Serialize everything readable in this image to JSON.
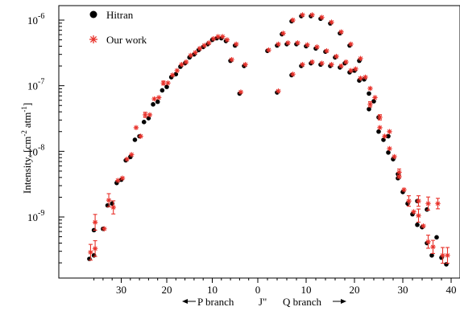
{
  "chart_data": {
    "type": "scatter",
    "xlabel": "J\"",
    "xlabel_left": "P branch",
    "xlabel_right": "Q branch",
    "ylabel_main": "Intensity, [cm",
    "ylabel_exp1": "-2",
    "ylabel_mid": "atm",
    "ylabel_exp2": "-1",
    "ylabel_end": "]",
    "y_scale": "log",
    "ylim": [
      1.8e-10,
      1.35e-06
    ],
    "xlim_note": "P branch plotted reversed (J\" 37 -> 1, left to right), Q branch plotted forward (J\" 1 -> 40)",
    "x_ticks": [
      {
        "value": "30",
        "branch": "P",
        "j": 30
      },
      {
        "value": "20",
        "branch": "P",
        "j": 20
      },
      {
        "value": "10",
        "branch": "P",
        "j": 10
      },
      {
        "value": "0",
        "branch": "Q",
        "j": 0
      },
      {
        "value": "10",
        "branch": "Q",
        "j": 10
      },
      {
        "value": "20",
        "branch": "Q",
        "j": 20
      },
      {
        "value": "30",
        "branch": "Q",
        "j": 30
      },
      {
        "value": "40",
        "branch": "Q",
        "j": 40
      }
    ],
    "y_ticks": [
      {
        "base": "10",
        "exp": "-9",
        "value": 1e-09
      },
      {
        "base": "10",
        "exp": "-8",
        "value": 1e-08
      },
      {
        "base": "10",
        "exp": "-7",
        "value": 1e-07
      },
      {
        "base": "10",
        "exp": "-6",
        "value": 1e-06
      }
    ],
    "legend": {
      "position": "top-left",
      "entries": [
        {
          "name": "Hitran",
          "marker": "circle",
          "color": "#000000"
        },
        {
          "name": "Our work",
          "marker": "asterisk",
          "color": "#e8322b"
        }
      ]
    },
    "series": [
      {
        "name": "Hitran",
        "color": "#000000",
        "points": [
          {
            "branch": "P",
            "j": 37,
            "y": 2.3e-10
          },
          {
            "branch": "P",
            "j": 36,
            "y": 2.6e-10
          },
          {
            "branch": "P",
            "j": 36,
            "y": 6.3e-10
          },
          {
            "branch": "P",
            "j": 34,
            "y": 6.6e-10
          },
          {
            "branch": "P",
            "j": 33,
            "y": 1.5e-09
          },
          {
            "branch": "P",
            "j": 32,
            "y": 1.6e-09
          },
          {
            "branch": "P",
            "j": 31,
            "y": 3.3e-09
          },
          {
            "branch": "P",
            "j": 30,
            "y": 3.7e-09
          },
          {
            "branch": "P",
            "j": 29,
            "y": 7.3e-09
          },
          {
            "branch": "P",
            "j": 28,
            "y": 8.2e-09
          },
          {
            "branch": "P",
            "j": 27,
            "y": 1.5e-08
          },
          {
            "branch": "P",
            "j": 26,
            "y": 1.7e-08
          },
          {
            "branch": "P",
            "j": 25,
            "y": 2.8e-08
          },
          {
            "branch": "P",
            "j": 24,
            "y": 3.2e-08
          },
          {
            "branch": "P",
            "j": 23,
            "y": 5.2e-08
          },
          {
            "branch": "P",
            "j": 22,
            "y": 5.7e-08
          },
          {
            "branch": "P",
            "j": 21,
            "y": 8.5e-08
          },
          {
            "branch": "P",
            "j": 20,
            "y": 9.6e-08
          },
          {
            "branch": "P",
            "j": 19,
            "y": 1.35e-07
          },
          {
            "branch": "P",
            "j": 18,
            "y": 1.5e-07
          },
          {
            "branch": "P",
            "j": 17,
            "y": 1.95e-07
          },
          {
            "branch": "P",
            "j": 16,
            "y": 2.2e-07
          },
          {
            "branch": "P",
            "j": 15,
            "y": 2.7e-07
          },
          {
            "branch": "P",
            "j": 14,
            "y": 3e-07
          },
          {
            "branch": "P",
            "j": 13,
            "y": 3.5e-07
          },
          {
            "branch": "P",
            "j": 12,
            "y": 3.9e-07
          },
          {
            "branch": "P",
            "j": 11,
            "y": 4.3e-07
          },
          {
            "branch": "P",
            "j": 10,
            "y": 5e-07
          },
          {
            "branch": "P",
            "j": 9,
            "y": 5.3e-07
          },
          {
            "branch": "P",
            "j": 8,
            "y": 5.3e-07
          },
          {
            "branch": "P",
            "j": 7,
            "y": 4.8e-07
          },
          {
            "branch": "P",
            "j": 6,
            "y": 2.4e-07
          },
          {
            "branch": "P",
            "j": 5,
            "y": 4.1e-07
          },
          {
            "branch": "P",
            "j": 4,
            "y": 7.6e-08
          },
          {
            "branch": "P",
            "j": 3,
            "y": 2e-07
          },
          {
            "branch": "Q",
            "j": 2,
            "y": 3.4e-07
          },
          {
            "branch": "Q",
            "j": 4,
            "y": 4.1e-07
          },
          {
            "branch": "Q",
            "j": 4,
            "y": 7.9e-08
          },
          {
            "branch": "Q",
            "j": 5,
            "y": 6.1e-07
          },
          {
            "branch": "Q",
            "j": 6,
            "y": 4.3e-07
          },
          {
            "branch": "Q",
            "j": 7,
            "y": 9.6e-07
          },
          {
            "branch": "Q",
            "j": 7,
            "y": 1.45e-07
          },
          {
            "branch": "Q",
            "j": 8,
            "y": 4.3e-07
          },
          {
            "branch": "Q",
            "j": 9,
            "y": 1.15e-06
          },
          {
            "branch": "Q",
            "j": 9,
            "y": 2e-07
          },
          {
            "branch": "Q",
            "j": 10,
            "y": 4e-07
          },
          {
            "branch": "Q",
            "j": 11,
            "y": 1.15e-06
          },
          {
            "branch": "Q",
            "j": 11,
            "y": 2.2e-07
          },
          {
            "branch": "Q",
            "j": 12,
            "y": 3.7e-07
          },
          {
            "branch": "Q",
            "j": 13,
            "y": 1.05e-06
          },
          {
            "branch": "Q",
            "j": 13,
            "y": 2.1e-07
          },
          {
            "branch": "Q",
            "j": 14,
            "y": 3.3e-07
          },
          {
            "branch": "Q",
            "j": 15,
            "y": 8.9e-07
          },
          {
            "branch": "Q",
            "j": 15,
            "y": 2e-07
          },
          {
            "branch": "Q",
            "j": 16,
            "y": 2.7e-07
          },
          {
            "branch": "Q",
            "j": 17,
            "y": 6.3e-07
          },
          {
            "branch": "Q",
            "j": 17,
            "y": 1.9e-07
          },
          {
            "branch": "Q",
            "j": 18,
            "y": 2.2e-07
          },
          {
            "branch": "Q",
            "j": 19,
            "y": 4.1e-07
          },
          {
            "branch": "Q",
            "j": 19,
            "y": 1.6e-07
          },
          {
            "branch": "Q",
            "j": 20,
            "y": 1.7e-07
          },
          {
            "branch": "Q",
            "j": 21,
            "y": 2.4e-07
          },
          {
            "branch": "Q",
            "j": 21,
            "y": 1.2e-07
          },
          {
            "branch": "Q",
            "j": 22,
            "y": 1.25e-07
          },
          {
            "branch": "Q",
            "j": 23,
            "y": 7.6e-08
          },
          {
            "branch": "Q",
            "j": 23,
            "y": 4.4e-08
          },
          {
            "branch": "Q",
            "j": 24,
            "y": 5.8e-08
          },
          {
            "branch": "Q",
            "j": 25,
            "y": 3.3e-08
          },
          {
            "branch": "Q",
            "j": 25,
            "y": 2e-08
          },
          {
            "branch": "Q",
            "j": 26,
            "y": 1.5e-08
          },
          {
            "branch": "Q",
            "j": 27,
            "y": 1.7e-08
          },
          {
            "branch": "Q",
            "j": 27,
            "y": 9.6e-09
          },
          {
            "branch": "Q",
            "j": 28,
            "y": 7.6e-09
          },
          {
            "branch": "Q",
            "j": 29,
            "y": 4.5e-09
          },
          {
            "branch": "Q",
            "j": 29,
            "y": 3.9e-09
          },
          {
            "branch": "Q",
            "j": 30,
            "y": 2.4e-09
          },
          {
            "branch": "Q",
            "j": 31,
            "y": 1.6e-09
          },
          {
            "branch": "Q",
            "j": 32,
            "y": 1.1e-09
          },
          {
            "branch": "Q",
            "j": 33,
            "y": 1.75e-09
          },
          {
            "branch": "Q",
            "j": 33,
            "y": 7.6e-10
          },
          {
            "branch": "Q",
            "j": 34,
            "y": 7e-10
          },
          {
            "branch": "Q",
            "j": 35,
            "y": 1.3e-09
          },
          {
            "branch": "Q",
            "j": 35,
            "y": 4e-10
          },
          {
            "branch": "Q",
            "j": 36,
            "y": 2.6e-10
          },
          {
            "branch": "Q",
            "j": 37,
            "y": 4.9e-10
          },
          {
            "branch": "Q",
            "j": 38,
            "y": 2.4e-10
          },
          {
            "branch": "Q",
            "j": 39,
            "y": 1.9e-10
          }
        ]
      },
      {
        "name": "Our work",
        "color": "#e8322b",
        "points": [
          {
            "branch": "P",
            "j": 37,
            "y": 2.9e-10,
            "err": 0.12
          },
          {
            "branch": "P",
            "j": 36,
            "y": 3.3e-10,
            "err": 0.12
          },
          {
            "branch": "P",
            "j": 36,
            "y": 8.3e-10,
            "err": 0.12
          },
          {
            "branch": "P",
            "j": 34,
            "y": 6.6e-10
          },
          {
            "branch": "P",
            "j": 33,
            "y": 1.8e-09,
            "err": 0.1
          },
          {
            "branch": "P",
            "j": 32,
            "y": 1.4e-09,
            "err": 0.1
          },
          {
            "branch": "P",
            "j": 31,
            "y": 3.6e-09
          },
          {
            "branch": "P",
            "j": 30,
            "y": 3.9e-09
          },
          {
            "branch": "P",
            "j": 29,
            "y": 7.6e-09
          },
          {
            "branch": "P",
            "j": 28,
            "y": 8.9e-09
          },
          {
            "branch": "P",
            "j": 27,
            "y": 2.3e-08
          },
          {
            "branch": "P",
            "j": 26,
            "y": 1.7e-08
          },
          {
            "branch": "P",
            "j": 25,
            "y": 3.6e-08,
            "err": 0.04
          },
          {
            "branch": "P",
            "j": 24,
            "y": 3.6e-08
          },
          {
            "branch": "P",
            "j": 23,
            "y": 6.3e-08
          },
          {
            "branch": "P",
            "j": 22,
            "y": 6.6e-08
          },
          {
            "branch": "P",
            "j": 21,
            "y": 1.1e-07,
            "err": 0.03
          },
          {
            "branch": "P",
            "j": 20,
            "y": 1.1e-07
          },
          {
            "branch": "P",
            "j": 19,
            "y": 1.45e-07
          },
          {
            "branch": "P",
            "j": 18,
            "y": 1.7e-07
          },
          {
            "branch": "P",
            "j": 17,
            "y": 2.1e-07
          },
          {
            "branch": "P",
            "j": 16,
            "y": 2.3e-07
          },
          {
            "branch": "P",
            "j": 15,
            "y": 2.9e-07
          },
          {
            "branch": "P",
            "j": 14,
            "y": 3.2e-07
          },
          {
            "branch": "P",
            "j": 13,
            "y": 3.7e-07
          },
          {
            "branch": "P",
            "j": 12,
            "y": 4.1e-07
          },
          {
            "branch": "P",
            "j": 11,
            "y": 4.5e-07
          },
          {
            "branch": "P",
            "j": 10,
            "y": 5.2e-07
          },
          {
            "branch": "P",
            "j": 9,
            "y": 5.6e-07
          },
          {
            "branch": "P",
            "j": 8,
            "y": 5.6e-07
          },
          {
            "branch": "P",
            "j": 7,
            "y": 5e-07
          },
          {
            "branch": "P",
            "j": 6,
            "y": 2.5e-07
          },
          {
            "branch": "P",
            "j": 5,
            "y": 4.3e-07
          },
          {
            "branch": "P",
            "j": 4,
            "y": 8e-08
          },
          {
            "branch": "P",
            "j": 3,
            "y": 2.1e-07
          },
          {
            "branch": "Q",
            "j": 2,
            "y": 3.5e-07
          },
          {
            "branch": "Q",
            "j": 4,
            "y": 4.3e-07
          },
          {
            "branch": "Q",
            "j": 4,
            "y": 8.3e-08
          },
          {
            "branch": "Q",
            "j": 5,
            "y": 6.3e-07
          },
          {
            "branch": "Q",
            "j": 6,
            "y": 4.5e-07
          },
          {
            "branch": "Q",
            "j": 7,
            "y": 1e-06
          },
          {
            "branch": "Q",
            "j": 7,
            "y": 1.5e-07
          },
          {
            "branch": "Q",
            "j": 8,
            "y": 4.5e-07
          },
          {
            "branch": "Q",
            "j": 9,
            "y": 1.2e-06
          },
          {
            "branch": "Q",
            "j": 9,
            "y": 2.1e-07
          },
          {
            "branch": "Q",
            "j": 10,
            "y": 4.2e-07
          },
          {
            "branch": "Q",
            "j": 11,
            "y": 1.2e-06
          },
          {
            "branch": "Q",
            "j": 11,
            "y": 2.3e-07
          },
          {
            "branch": "Q",
            "j": 12,
            "y": 3.9e-07
          },
          {
            "branch": "Q",
            "j": 13,
            "y": 1.1e-06
          },
          {
            "branch": "Q",
            "j": 13,
            "y": 2.2e-07
          },
          {
            "branch": "Q",
            "j": 14,
            "y": 3.4e-07
          },
          {
            "branch": "Q",
            "j": 15,
            "y": 9.3e-07
          },
          {
            "branch": "Q",
            "j": 15,
            "y": 2.1e-07
          },
          {
            "branch": "Q",
            "j": 16,
            "y": 2.8e-07
          },
          {
            "branch": "Q",
            "j": 17,
            "y": 6.6e-07
          },
          {
            "branch": "Q",
            "j": 17,
            "y": 2e-07
          },
          {
            "branch": "Q",
            "j": 18,
            "y": 2.3e-07
          },
          {
            "branch": "Q",
            "j": 19,
            "y": 4.3e-07
          },
          {
            "branch": "Q",
            "j": 19,
            "y": 1.7e-07
          },
          {
            "branch": "Q",
            "j": 20,
            "y": 1.8e-07
          },
          {
            "branch": "Q",
            "j": 21,
            "y": 2.6e-07
          },
          {
            "branch": "Q",
            "j": 21,
            "y": 1.3e-07
          },
          {
            "branch": "Q",
            "j": 22,
            "y": 1.35e-07
          },
          {
            "branch": "Q",
            "j": 23,
            "y": 9.1e-08
          },
          {
            "branch": "Q",
            "j": 23,
            "y": 5.2e-08,
            "err": 0.04
          },
          {
            "branch": "Q",
            "j": 24,
            "y": 6.6e-08
          },
          {
            "branch": "Q",
            "j": 25,
            "y": 3.3e-08,
            "err": 0.04
          },
          {
            "branch": "Q",
            "j": 25,
            "y": 2.3e-08
          },
          {
            "branch": "Q",
            "j": 26,
            "y": 1.7e-08
          },
          {
            "branch": "Q",
            "j": 27,
            "y": 2e-08
          },
          {
            "branch": "Q",
            "j": 27,
            "y": 1.1e-08
          },
          {
            "branch": "Q",
            "j": 28,
            "y": 8.3e-09
          },
          {
            "branch": "Q",
            "j": 29,
            "y": 4.8e-09,
            "err": 0.05
          },
          {
            "branch": "Q",
            "j": 29,
            "y": 4.1e-09
          },
          {
            "branch": "Q",
            "j": 30,
            "y": 2.6e-09
          },
          {
            "branch": "Q",
            "j": 31,
            "y": 1.75e-09,
            "err": 0.08
          },
          {
            "branch": "Q",
            "j": 32,
            "y": 1.2e-09
          },
          {
            "branch": "Q",
            "j": 33,
            "y": 1.75e-09,
            "err": 0.08
          },
          {
            "branch": "Q",
            "j": 33,
            "y": 1.05e-09,
            "err": 0.1
          },
          {
            "branch": "Q",
            "j": 34,
            "y": 7.3e-10
          },
          {
            "branch": "Q",
            "j": 35,
            "y": 1.6e-09,
            "err": 0.1
          },
          {
            "branch": "Q",
            "j": 35,
            "y": 4.2e-10,
            "err": 0.1
          },
          {
            "branch": "Q",
            "j": 36,
            "y": 3.5e-10,
            "err": 0.1
          },
          {
            "branch": "Q",
            "j": 37,
            "y": 1.6e-09,
            "err": 0.08
          },
          {
            "branch": "Q",
            "j": 38,
            "y": 2.6e-10,
            "err": 0.12
          },
          {
            "branch": "Q",
            "j": 39,
            "y": 2.6e-10,
            "err": 0.12
          }
        ]
      }
    ]
  }
}
